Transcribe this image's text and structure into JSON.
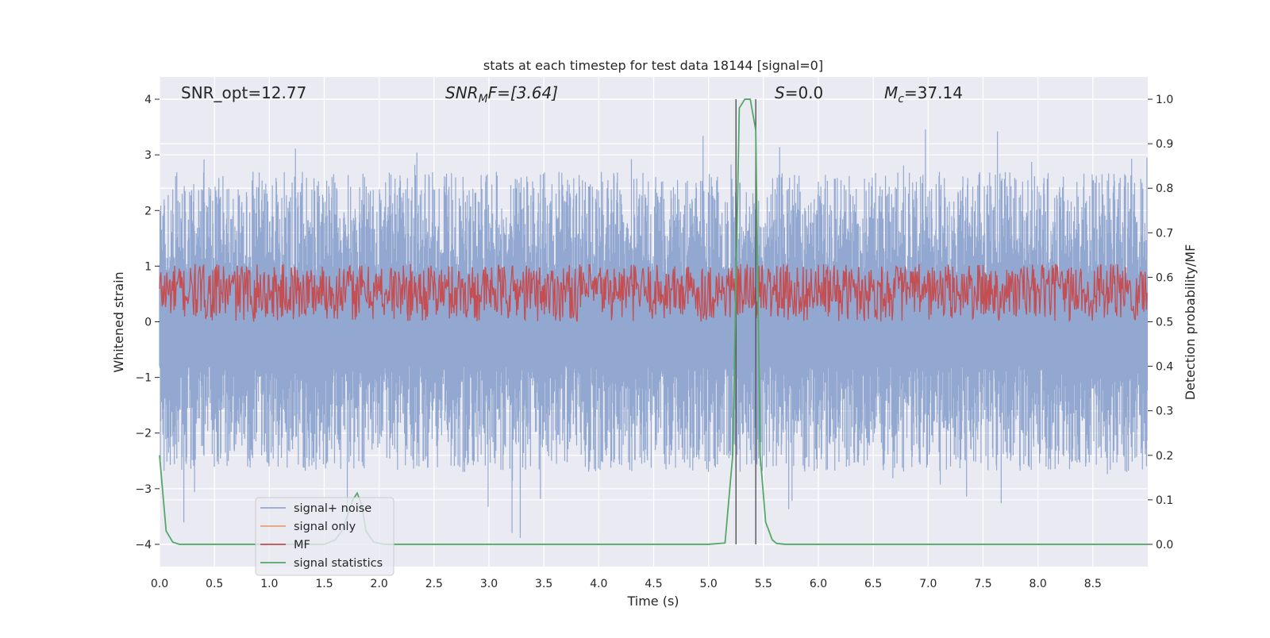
{
  "chart_data": {
    "type": "line",
    "title": "stats at each timestep for test data 18144 [signal=0]",
    "xlabel": "Time (s)",
    "ylabel_left": "Whitened strain",
    "ylabel_right": "Detection probability/MF",
    "xlim": [
      0,
      9.0
    ],
    "ylim_left": [
      -4.4,
      4.4
    ],
    "ylim_right": [
      -0.05,
      1.05
    ],
    "x_ticks": [
      0.0,
      0.5,
      1.0,
      1.5,
      2.0,
      2.5,
      3.0,
      3.5,
      4.0,
      4.5,
      5.0,
      5.5,
      6.0,
      6.5,
      7.0,
      7.5,
      8.0,
      8.5
    ],
    "x_tick_labels": [
      "0.0",
      "0.5",
      "1.0",
      "1.5",
      "2.0",
      "2.5",
      "3.0",
      "3.5",
      "4.0",
      "4.5",
      "5.0",
      "5.5",
      "6.0",
      "6.5",
      "7.0",
      "7.5",
      "8.0",
      "8.5"
    ],
    "y_left_ticks": [
      4,
      3,
      2,
      1,
      0,
      -1,
      -2,
      -3,
      -4
    ],
    "y_left_tick_labels": [
      "4",
      "3",
      "2",
      "1",
      "0",
      "−1",
      "−2",
      "−3",
      "−4"
    ],
    "y_right_ticks": [
      1.0,
      0.9,
      0.8,
      0.7,
      0.6,
      0.5,
      0.4,
      0.3,
      0.2,
      0.1,
      0.0
    ],
    "y_right_tick_labels": [
      "1.0",
      "0.9",
      "0.8",
      "0.7",
      "0.6",
      "0.5",
      "0.4",
      "0.3",
      "0.2",
      "0.1",
      "0.0"
    ],
    "grid": true,
    "legend_position": "lower-left",
    "annotations": [
      {
        "key": "snr_opt",
        "label": "SNR_opt=12.77"
      },
      {
        "key": "snr_mf",
        "label": "SNR",
        "sub": "M",
        "rest": "F=[3.64]"
      },
      {
        "key": "s_stat",
        "label": "S",
        "rest": "=0.0"
      },
      {
        "key": "mchirp",
        "label": "M",
        "sub": "c",
        "rest": "=37.14"
      }
    ],
    "vertical_lines": [
      5.25,
      5.43
    ],
    "series": [
      {
        "name": "signal+ noise",
        "color": "#92a8d1",
        "axis": "left",
        "style": "noise",
        "seed": 18144,
        "baseline": -0.8,
        "amplitude": 2.0,
        "range": [
          -4.0,
          4.0
        ]
      },
      {
        "name": "signal only",
        "color": "#e8a07a",
        "axis": "left",
        "values": []
      },
      {
        "name": "MF",
        "color": "#c44e52",
        "axis": "right",
        "style": "noise",
        "seed": 777,
        "baseline": 0.5,
        "range": [
          0.5,
          0.63
        ]
      },
      {
        "name": "signal statistics",
        "color": "#55a868",
        "axis": "right",
        "x": [
          0.0,
          0.06,
          0.12,
          0.18,
          0.25,
          0.5,
          1.0,
          1.5,
          1.6,
          1.66,
          1.72,
          1.76,
          1.8,
          1.84,
          1.88,
          1.95,
          2.05,
          2.2,
          3.0,
          4.0,
          5.0,
          5.15,
          5.22,
          5.28,
          5.33,
          5.38,
          5.43,
          5.47,
          5.52,
          5.58,
          5.62,
          5.7,
          6.0,
          7.0,
          8.0,
          9.0
        ],
        "y": [
          0.2,
          0.03,
          0.005,
          0.0,
          0.0,
          0.0,
          0.0,
          0.0,
          0.01,
          0.03,
          0.07,
          0.1,
          0.115,
          0.09,
          0.03,
          0.005,
          0.0,
          0.0,
          0.0,
          0.0,
          0.0,
          0.003,
          0.2,
          0.98,
          1.0,
          1.0,
          0.93,
          0.2,
          0.05,
          0.01,
          0.002,
          0.0,
          0.0,
          0.0,
          0.0,
          0.0
        ]
      }
    ]
  }
}
